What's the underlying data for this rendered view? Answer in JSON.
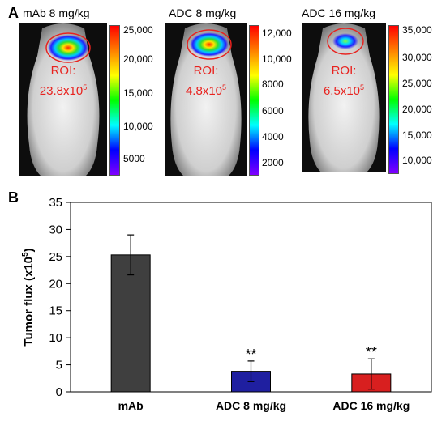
{
  "panel_a": {
    "letter": "A",
    "images": [
      {
        "title": "mAb 8 mg/kg",
        "roi_label": "ROI:",
        "roi_base": "23.8x10",
        "roi_exp": "5",
        "colorbar_ticks": [
          "25,000",
          "20,000",
          "15,000",
          "10,000",
          "5000"
        ]
      },
      {
        "title": "ADC 8 mg/kg",
        "roi_label": "ROI:",
        "roi_base": "4.8x10",
        "roi_exp": "5",
        "colorbar_ticks": [
          "12,000",
          "10,000",
          "8000",
          "6000",
          "4000",
          "2000"
        ]
      },
      {
        "title": "ADC 16 mg/kg",
        "roi_label": "ROI:",
        "roi_base": "6.5x10",
        "roi_exp": "5",
        "colorbar_ticks": [
          "35,000",
          "30,000",
          "25,000",
          "20,000",
          "15,000",
          "10,000"
        ]
      }
    ],
    "roi_color": "#e8231f"
  },
  "panel_b": {
    "letter": "B"
  },
  "chart_data": {
    "type": "bar",
    "categories": [
      "mAb",
      "ADC 8 mg/kg",
      "ADC 16 mg/kg"
    ],
    "values": [
      25.3,
      3.8,
      3.3
    ],
    "errors": [
      3.7,
      1.9,
      2.8
    ],
    "significance": [
      "",
      "**",
      "**"
    ],
    "colors": [
      "#3f3f3f",
      "#1f1fa0",
      "#d81f1f"
    ],
    "ylabel_base": "Tumor flux (x10",
    "ylabel_exp": "5",
    "ylabel_end": ")",
    "ylim": [
      0,
      35
    ],
    "yticks": [
      0,
      5,
      10,
      15,
      20,
      25,
      30,
      35
    ],
    "grid": false
  }
}
